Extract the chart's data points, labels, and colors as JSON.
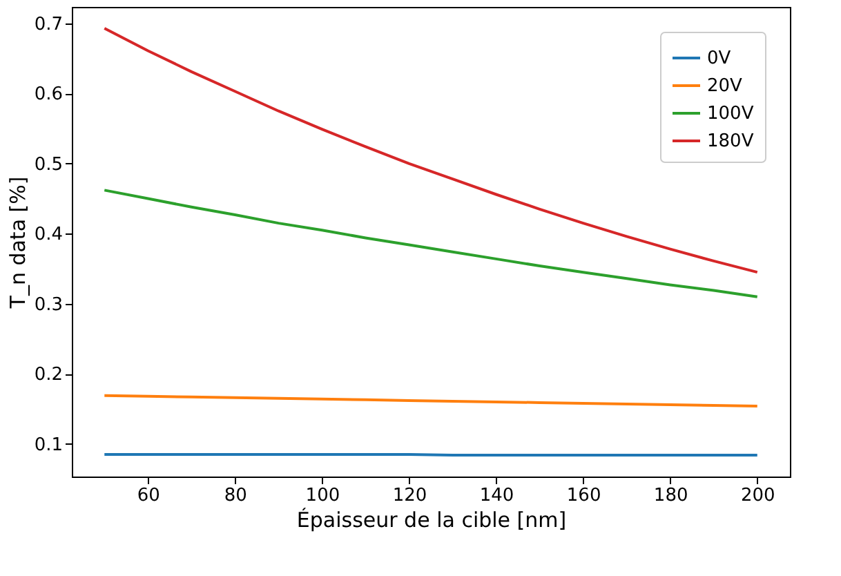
{
  "chart_data": {
    "type": "line",
    "xlabel": "Épaisseur de la cible [nm]",
    "ylabel": "T_n data [%]",
    "x": [
      50,
      60,
      70,
      80,
      90,
      100,
      110,
      120,
      130,
      140,
      150,
      160,
      170,
      180,
      190,
      200
    ],
    "xlim": [
      42.5,
      207.5
    ],
    "xticks": [
      60,
      80,
      100,
      120,
      140,
      160,
      180,
      200
    ],
    "ylim": [
      0.0535,
      0.7235
    ],
    "yticks": [
      0.1,
      0.2,
      0.3,
      0.4,
      0.5,
      0.6,
      0.7
    ],
    "grid": false,
    "legend": "top right",
    "marker": "none",
    "line_style": "solid",
    "series": [
      {
        "name": "0V",
        "color": "#1f77b4",
        "values": [
          0.085,
          0.085,
          0.085,
          0.085,
          0.085,
          0.085,
          0.085,
          0.085,
          0.084,
          0.084,
          0.084,
          0.084,
          0.084,
          0.084,
          0.084,
          0.084
        ]
      },
      {
        "name": "20V",
        "color": "#ff7f0e",
        "values": [
          0.169,
          0.168,
          0.167,
          0.166,
          0.165,
          0.164,
          0.163,
          0.162,
          0.161,
          0.16,
          0.159,
          0.158,
          0.157,
          0.156,
          0.155,
          0.154
        ]
      },
      {
        "name": "100V",
        "color": "#2ca02c",
        "values": [
          0.462,
          0.45,
          0.438,
          0.427,
          0.415,
          0.405,
          0.394,
          0.384,
          0.374,
          0.364,
          0.354,
          0.345,
          0.336,
          0.327,
          0.319,
          0.31
        ]
      },
      {
        "name": "180V",
        "color": "#d62728",
        "values": [
          0.693,
          0.661,
          0.631,
          0.603,
          0.575,
          0.549,
          0.524,
          0.5,
          0.478,
          0.456,
          0.435,
          0.415,
          0.396,
          0.378,
          0.361,
          0.345
        ]
      }
    ]
  }
}
